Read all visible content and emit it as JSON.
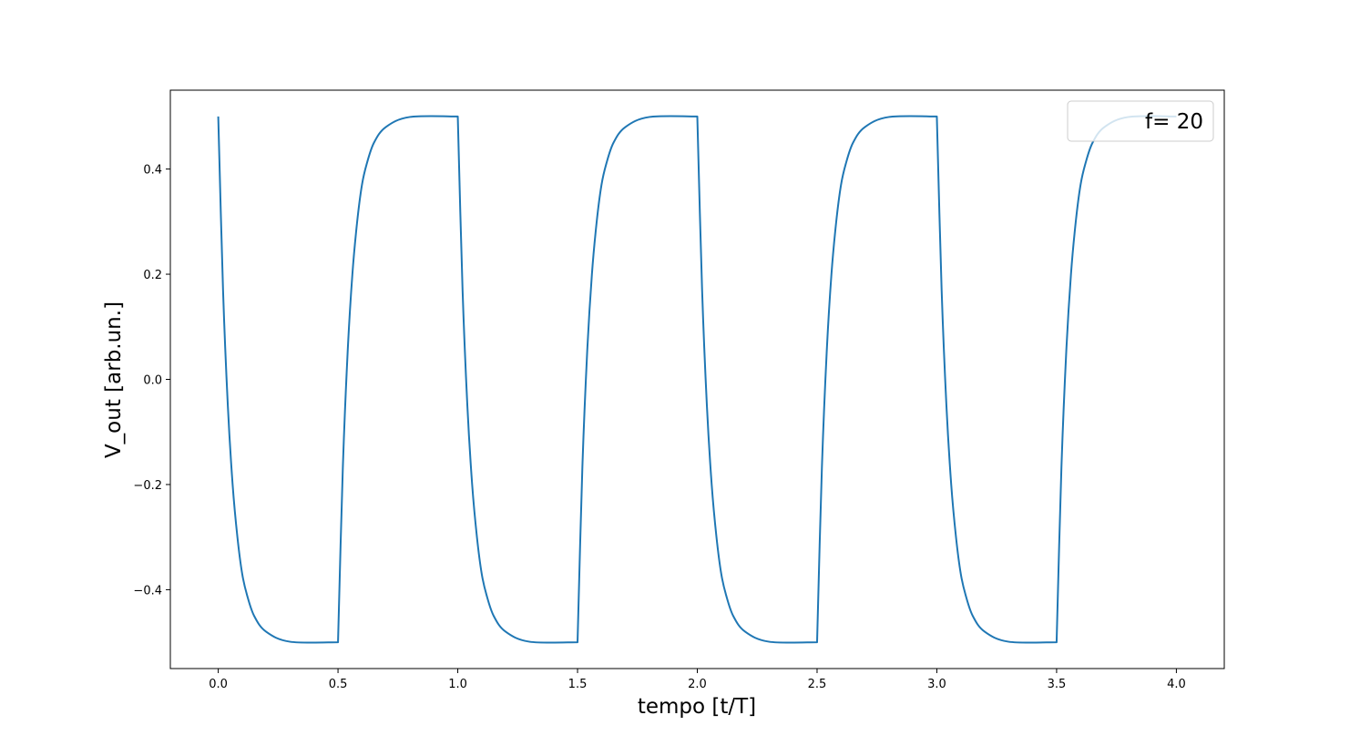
{
  "chart_data": {
    "type": "line",
    "title": "",
    "xlabel": "tempo [t/T]",
    "ylabel": "V_out [arb.un.]",
    "xlim": [
      -0.2,
      4.2
    ],
    "ylim": [
      -0.55,
      0.55
    ],
    "x_ticks": [
      0.0,
      0.5,
      1.0,
      1.5,
      2.0,
      2.5,
      3.0,
      3.5,
      4.0
    ],
    "x_tick_labels": [
      "0.0",
      "0.5",
      "1.0",
      "1.5",
      "2.0",
      "2.5",
      "3.0",
      "3.5",
      "4.0"
    ],
    "y_ticks": [
      -0.4,
      -0.2,
      0.0,
      0.2,
      0.4
    ],
    "y_tick_labels": [
      "−0.4",
      "−0.2",
      "0.0",
      "0.2",
      "0.4"
    ],
    "grid": false,
    "legend": {
      "placement": "top-right",
      "entries": [
        "f= 20"
      ]
    },
    "series": [
      {
        "name": "f= 20",
        "color": "#1f77b4",
        "x": [
          0.0,
          0.02,
          0.04,
          0.06,
          0.08,
          0.1,
          0.12,
          0.15,
          0.2,
          0.3,
          0.5,
          0.5,
          0.52,
          0.54,
          0.56,
          0.58,
          0.6,
          0.62,
          0.65,
          0.7,
          0.8,
          1.0,
          1.0,
          1.02,
          1.04,
          1.06,
          1.08,
          1.1,
          1.12,
          1.15,
          1.2,
          1.3,
          1.5,
          1.5,
          1.52,
          1.54,
          1.56,
          1.58,
          1.6,
          1.62,
          1.65,
          1.7,
          1.8,
          2.0,
          2.0,
          2.02,
          2.04,
          2.06,
          2.08,
          2.1,
          2.12,
          2.15,
          2.2,
          2.3,
          2.5,
          2.5,
          2.52,
          2.54,
          2.56,
          2.58,
          2.6,
          2.62,
          2.65,
          2.7,
          2.8,
          3.0,
          3.0,
          3.02,
          3.04,
          3.06,
          3.08,
          3.1,
          3.12,
          3.15,
          3.2,
          3.3,
          3.5,
          3.5,
          3.52,
          3.54,
          3.56,
          3.58,
          3.6,
          3.62,
          3.65,
          3.7,
          3.8,
          4.0
        ],
        "y": [
          0.5,
          0.17,
          -0.05,
          -0.2,
          -0.3,
          -0.37,
          -0.41,
          -0.45,
          -0.48,
          -0.499,
          -0.5,
          -0.5,
          -0.17,
          0.05,
          0.2,
          0.3,
          0.37,
          0.41,
          0.45,
          0.48,
          0.499,
          0.5,
          0.5,
          0.17,
          -0.05,
          -0.2,
          -0.3,
          -0.37,
          -0.41,
          -0.45,
          -0.48,
          -0.499,
          -0.5,
          -0.5,
          -0.17,
          0.05,
          0.2,
          0.3,
          0.37,
          0.41,
          0.45,
          0.48,
          0.499,
          0.5,
          0.5,
          0.17,
          -0.05,
          -0.2,
          -0.3,
          -0.37,
          -0.41,
          -0.45,
          -0.48,
          -0.499,
          -0.5,
          -0.5,
          -0.17,
          0.05,
          0.2,
          0.3,
          0.37,
          0.41,
          0.45,
          0.48,
          0.499,
          0.5,
          0.5,
          0.17,
          -0.05,
          -0.2,
          -0.3,
          -0.37,
          -0.41,
          -0.45,
          -0.48,
          -0.499,
          -0.5,
          -0.5,
          -0.17,
          0.05,
          0.2,
          0.3,
          0.37,
          0.41,
          0.45,
          0.48,
          0.499,
          0.5
        ]
      }
    ]
  }
}
